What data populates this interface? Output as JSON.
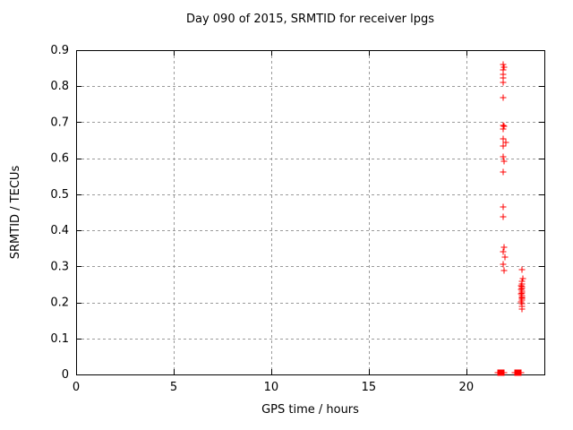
{
  "chart_data": {
    "type": "scatter",
    "title": "Day 090 of 2015, SRMTID for receiver lpgs",
    "xlabel": "GPS time / hours",
    "ylabel": "SRMTID / TECUs",
    "xlim": [
      0,
      24
    ],
    "ylim": [
      0,
      0.9
    ],
    "xticks": [
      0,
      5,
      10,
      15,
      20
    ],
    "xtick_labels": [
      "0",
      "5",
      "10",
      "15",
      "20"
    ],
    "yticks": [
      0,
      0.1,
      0.2,
      0.3,
      0.4,
      0.5,
      0.6,
      0.7,
      0.8,
      0.9
    ],
    "ytick_labels": [
      "0",
      "0.1",
      "0.2",
      "0.3",
      "0.4",
      "0.5",
      "0.6",
      "0.7",
      "0.8",
      "0.9"
    ],
    "grid": true,
    "grid_color": "#9a9a9a",
    "axis_color": "#000000",
    "legend": "none",
    "marker": "plus",
    "series": [
      {
        "name": "SRMTID",
        "color": "#ff0000",
        "points": [
          [
            21.89,
            0.861
          ],
          [
            21.93,
            0.853
          ],
          [
            21.89,
            0.845
          ],
          [
            21.9,
            0.834
          ],
          [
            21.89,
            0.822
          ],
          [
            21.91,
            0.81
          ],
          [
            21.9,
            0.768
          ],
          [
            21.89,
            0.692
          ],
          [
            21.92,
            0.688
          ],
          [
            21.9,
            0.682
          ],
          [
            21.89,
            0.654
          ],
          [
            22.02,
            0.645
          ],
          [
            21.91,
            0.634
          ],
          [
            21.9,
            0.605
          ],
          [
            21.93,
            0.592
          ],
          [
            21.91,
            0.563
          ],
          [
            21.9,
            0.464
          ],
          [
            21.91,
            0.437
          ],
          [
            21.95,
            0.352
          ],
          [
            21.9,
            0.34
          ],
          [
            21.97,
            0.326
          ],
          [
            21.9,
            0.306
          ],
          [
            21.93,
            0.289
          ],
          [
            22.83,
            0.29
          ],
          [
            22.88,
            0.265
          ],
          [
            22.83,
            0.258
          ],
          [
            22.85,
            0.252
          ],
          [
            22.81,
            0.247
          ],
          [
            22.87,
            0.243
          ],
          [
            22.84,
            0.239
          ],
          [
            22.82,
            0.235
          ],
          [
            22.86,
            0.231
          ],
          [
            22.84,
            0.227
          ],
          [
            22.81,
            0.223
          ],
          [
            22.85,
            0.219
          ],
          [
            22.83,
            0.215
          ],
          [
            22.87,
            0.211
          ],
          [
            22.84,
            0.206
          ],
          [
            22.82,
            0.201
          ],
          [
            22.85,
            0.196
          ],
          [
            22.83,
            0.19
          ],
          [
            22.84,
            0.182
          ],
          [
            21.61,
            0.005
          ],
          [
            21.65,
            0.005
          ],
          [
            21.69,
            0.005
          ],
          [
            21.73,
            0.005
          ],
          [
            21.77,
            0.005
          ],
          [
            21.81,
            0.005
          ],
          [
            21.85,
            0.005
          ],
          [
            21.89,
            0.005
          ],
          [
            21.93,
            0.005
          ],
          [
            22.48,
            0.005
          ],
          [
            22.52,
            0.005
          ],
          [
            22.56,
            0.005
          ],
          [
            22.6,
            0.005
          ],
          [
            22.64,
            0.005
          ],
          [
            22.68,
            0.005
          ],
          [
            22.72,
            0.005
          ],
          [
            22.76,
            0.005
          ],
          [
            22.8,
            0.005
          ]
        ]
      }
    ]
  }
}
